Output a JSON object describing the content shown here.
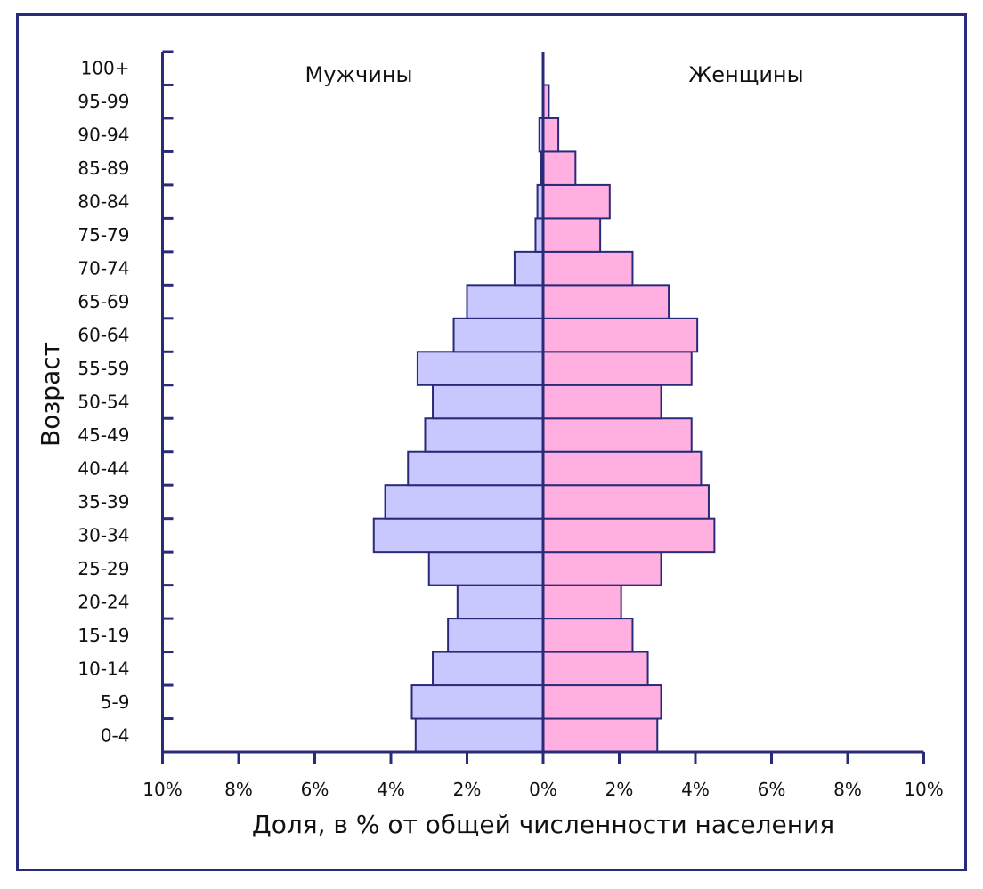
{
  "chart_data": {
    "type": "bar",
    "orientation": "horizontal-pyramid",
    "ylabel": "Возраст",
    "xlabel": "Доля, в % от общей численности населения",
    "xlim": [
      -10,
      10
    ],
    "x_ticks": [
      -10,
      -8,
      -6,
      -4,
      -2,
      0,
      2,
      4,
      6,
      8,
      10
    ],
    "x_tick_labels": [
      "10%",
      "8%",
      "6%",
      "4%",
      "2%",
      "0%",
      "2%",
      "4%",
      "6%",
      "8%",
      "10%"
    ],
    "categories": [
      "0-4",
      "5-9",
      "10-14",
      "15-19",
      "20-24",
      "25-29",
      "30-34",
      "35-39",
      "40-44",
      "45-49",
      "50-54",
      "55-59",
      "60-64",
      "65-69",
      "70-74",
      "75-79",
      "80-84",
      "85-89",
      "90-94",
      "95-99",
      "100+"
    ],
    "series": [
      {
        "name": "Мужчины",
        "values": [
          3.35,
          3.45,
          2.9,
          2.5,
          2.25,
          3.0,
          4.45,
          4.15,
          3.55,
          3.1,
          2.9,
          3.3,
          2.35,
          2.0,
          0.75,
          0.2,
          0.15,
          0.05,
          0.1,
          0.0,
          0.0
        ],
        "color": "#c8c8ff"
      },
      {
        "name": "Женщины",
        "values": [
          3.0,
          3.1,
          2.75,
          2.35,
          2.05,
          3.1,
          4.5,
          4.35,
          4.15,
          3.9,
          3.1,
          3.9,
          4.05,
          3.3,
          2.35,
          1.5,
          1.75,
          0.85,
          0.4,
          0.15,
          0.0
        ],
        "color": "#ffb0e0"
      }
    ],
    "axis_color": "#2a2a7a",
    "grid": false
  }
}
